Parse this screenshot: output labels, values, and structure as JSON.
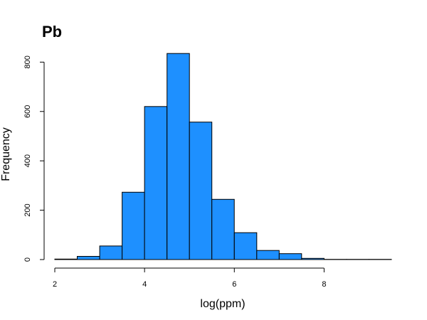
{
  "chart_data": {
    "type": "bar",
    "title": "Pb",
    "xlabel": "log(ppm)",
    "ylabel": "Frequency",
    "bar_color": "#1e90ff",
    "bin_edges": [
      2.0,
      2.5,
      3.0,
      3.5,
      4.0,
      4.5,
      5.0,
      5.5,
      6.0,
      6.5,
      7.0,
      7.5,
      8.0,
      8.5,
      9.0,
      9.5
    ],
    "values": [
      2,
      13,
      55,
      273,
      620,
      835,
      557,
      244,
      109,
      37,
      24,
      5,
      1,
      1,
      1
    ],
    "x_ticks": [
      2,
      4,
      6,
      8
    ],
    "y_ticks": [
      0,
      200,
      400,
      600,
      800
    ],
    "xlim": [
      2,
      9.5
    ],
    "ylim": [
      0,
      850
    ],
    "grid": false,
    "legend": "none"
  }
}
